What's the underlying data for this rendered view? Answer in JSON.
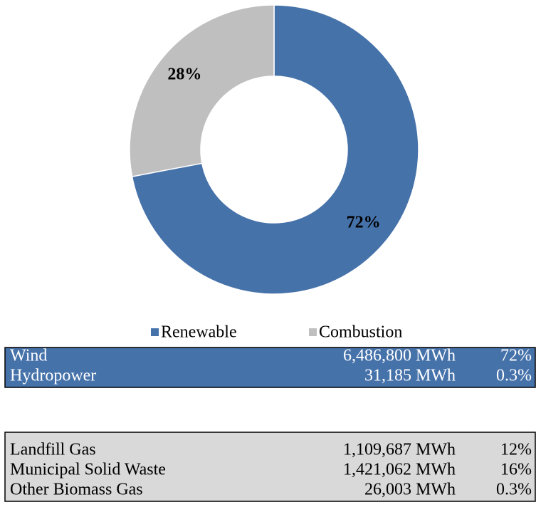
{
  "chart_data": {
    "type": "pie",
    "donut": true,
    "categories": [
      "Renewable",
      "Combustion"
    ],
    "values": [
      72,
      28
    ],
    "value_labels": [
      "72%",
      "28%"
    ],
    "colors": [
      "#4672aa",
      "#bfbfbf"
    ],
    "legend": "bottom"
  },
  "tables": [
    {
      "rows": [
        [
          "Wind",
          "6,486,800 MWh",
          "72%"
        ],
        [
          "Hydropower",
          "31,185 MWh",
          "0.3%"
        ]
      ]
    },
    {
      "rows": [
        [
          "Landfill Gas",
          "1,109,687 MWh",
          "12%"
        ],
        [
          "Municipal Solid Waste",
          "1,421,062 MWh",
          "16%"
        ],
        [
          "Other Biomass Gas",
          "26,003 MWh",
          "0.3%"
        ]
      ]
    }
  ]
}
